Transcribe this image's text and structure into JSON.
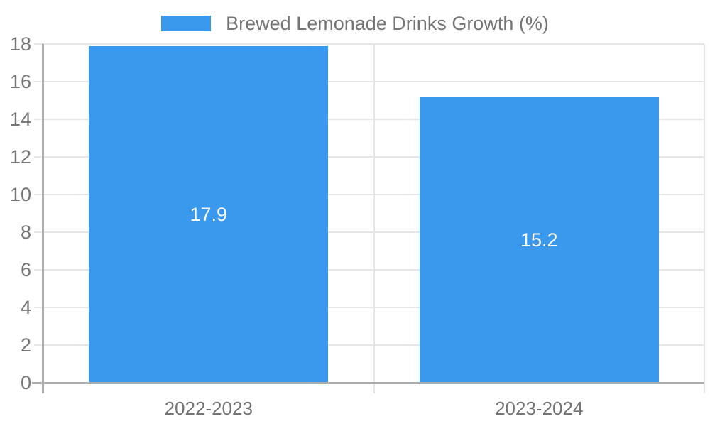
{
  "legend": {
    "series_label": "Brewed Lemonade Drinks Growth (%)"
  },
  "chart_data": {
    "type": "bar",
    "title": "",
    "categories": [
      "2022-2023",
      "2023-2024"
    ],
    "series": [
      {
        "name": "Brewed Lemonade Drinks Growth (%)",
        "values": [
          17.9,
          15.2
        ]
      }
    ],
    "value_labels": [
      "17.9",
      "15.2"
    ],
    "xlabel": "",
    "ylabel": "",
    "ylim": [
      0,
      18
    ],
    "ytick_step": 2,
    "ytick_labels": [
      "0",
      "2",
      "4",
      "6",
      "8",
      "10",
      "12",
      "14",
      "16",
      "18"
    ],
    "grid": true,
    "legend_position": "top-center",
    "colors": {
      "bar": "#3a99ec",
      "axis_text": "#757575",
      "grid_line": "#e6e6e6",
      "axis_line": "#adadad",
      "value_label": "#fbfbfb",
      "background": "#ffffff"
    }
  }
}
